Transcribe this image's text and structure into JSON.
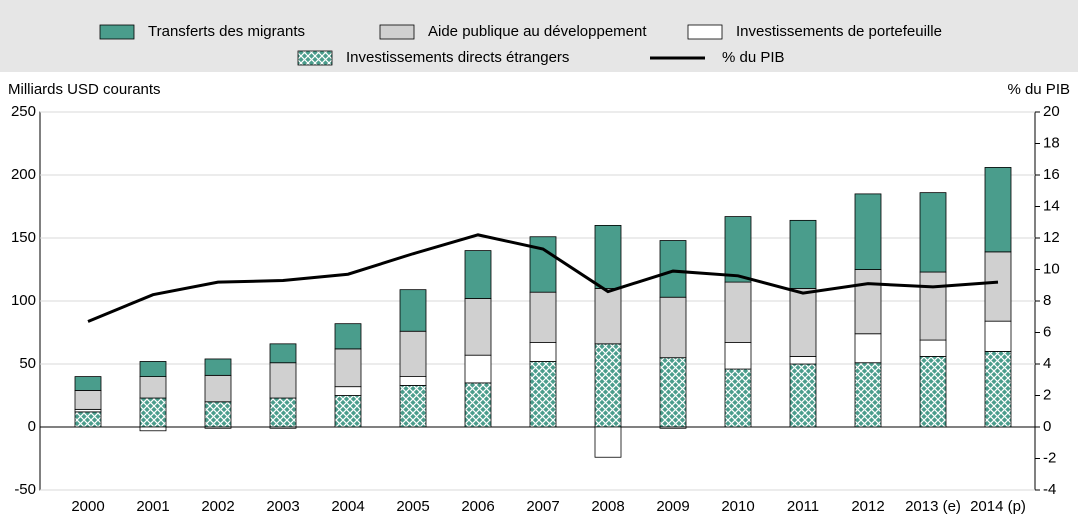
{
  "chart_data": {
    "type": "bar",
    "categories": [
      "2000",
      "2001",
      "2002",
      "2003",
      "2004",
      "2005",
      "2006",
      "2007",
      "2008",
      "2009",
      "2010",
      "2011",
      "2012",
      "2013 (e)",
      "2014 (p)"
    ],
    "y_label": "Milliards USD courants",
    "y2_label": "% du PIB",
    "ylim": [
      -50,
      250
    ],
    "yticks": [
      -50,
      0,
      50,
      100,
      150,
      200,
      250
    ],
    "y2lim": [
      -4,
      20
    ],
    "y2ticks": [
      -4,
      -2,
      0,
      2,
      4,
      6,
      8,
      10,
      12,
      14,
      16,
      18,
      20
    ],
    "grid": true,
    "series": [
      {
        "name": "Investissements directs étrangers",
        "color": "#4a9d8c",
        "hatch": true,
        "values": [
          12,
          23,
          20,
          23,
          25,
          33,
          35,
          52,
          66,
          55,
          46,
          50,
          51,
          56,
          60
        ]
      },
      {
        "name": "Investissements de portefeuille",
        "color": "#ffffff",
        "values": [
          2,
          -3,
          -1,
          -1,
          7,
          7,
          22,
          15,
          -24,
          -1,
          21,
          6,
          23,
          13,
          24
        ]
      },
      {
        "name": "Aide publique au développement",
        "color": "#d0d0d0",
        "values": [
          15,
          17,
          21,
          28,
          30,
          36,
          45,
          40,
          44,
          48,
          48,
          54,
          51,
          54,
          55
        ]
      },
      {
        "name": "Transferts des migrants",
        "color": "#4a9d8c",
        "values": [
          11,
          12,
          13,
          15,
          20,
          33,
          38,
          44,
          50,
          45,
          52,
          54,
          60,
          63,
          67
        ]
      },
      {
        "name": "% du PIB",
        "type": "line",
        "axis": "y2",
        "color": "#000000",
        "values": [
          6.7,
          8.4,
          9.2,
          9.3,
          9.7,
          11.0,
          12.2,
          11.3,
          8.6,
          9.9,
          9.6,
          8.5,
          9.1,
          8.9,
          9.2
        ]
      }
    ]
  }
}
